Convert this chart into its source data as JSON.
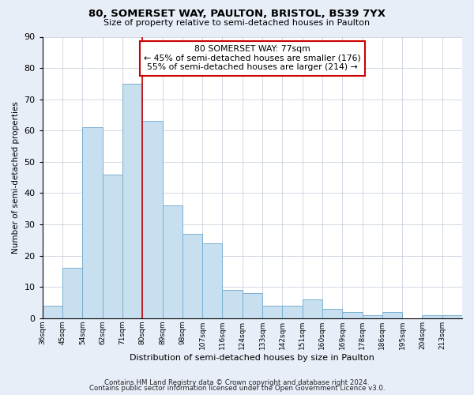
{
  "title": "80, SOMERSET WAY, PAULTON, BRISTOL, BS39 7YX",
  "subtitle": "Size of property relative to semi-detached houses in Paulton",
  "xlabel": "Distribution of semi-detached houses by size in Paulton",
  "ylabel": "Number of semi-detached properties",
  "bin_labels": [
    "36sqm",
    "45sqm",
    "54sqm",
    "62sqm",
    "71sqm",
    "80sqm",
    "89sqm",
    "98sqm",
    "107sqm",
    "116sqm",
    "124sqm",
    "133sqm",
    "142sqm",
    "151sqm",
    "160sqm",
    "169sqm",
    "178sqm",
    "186sqm",
    "195sqm",
    "204sqm",
    "213sqm"
  ],
  "bin_edges": [
    0,
    1,
    2,
    3,
    4,
    5,
    6,
    7,
    8,
    9,
    10,
    11,
    12,
    13,
    14,
    15,
    16,
    17,
    18,
    19,
    20
  ],
  "bin_widths": [
    1,
    1,
    1,
    1,
    1,
    1,
    1,
    1,
    1,
    1,
    1,
    1,
    1,
    1,
    1,
    1,
    1,
    1,
    1,
    1,
    1
  ],
  "counts": [
    4,
    16,
    61,
    46,
    75,
    63,
    36,
    27,
    24,
    9,
    8,
    4,
    4,
    6,
    3,
    2,
    1,
    2,
    0,
    1,
    1
  ],
  "bar_color": "#c8dff0",
  "bar_edge_color": "#7ab0d0",
  "marker_bin": 5,
  "marker_line_color": "#cc0000",
  "annotation_title": "80 SOMERSET WAY: 77sqm",
  "annotation_line1": "← 45% of semi-detached houses are smaller (176)",
  "annotation_line2": "55% of semi-detached houses are larger (214) →",
  "annotation_box_edge": "#cc0000",
  "ylim": [
    0,
    90
  ],
  "yticks": [
    0,
    10,
    20,
    30,
    40,
    50,
    60,
    70,
    80,
    90
  ],
  "footer1": "Contains HM Land Registry data © Crown copyright and database right 2024.",
  "footer2": "Contains public sector information licensed under the Open Government Licence v3.0.",
  "bg_color": "#e8eef8",
  "plot_bg_color": "#ffffff",
  "grid_color": "#c0c8d8"
}
